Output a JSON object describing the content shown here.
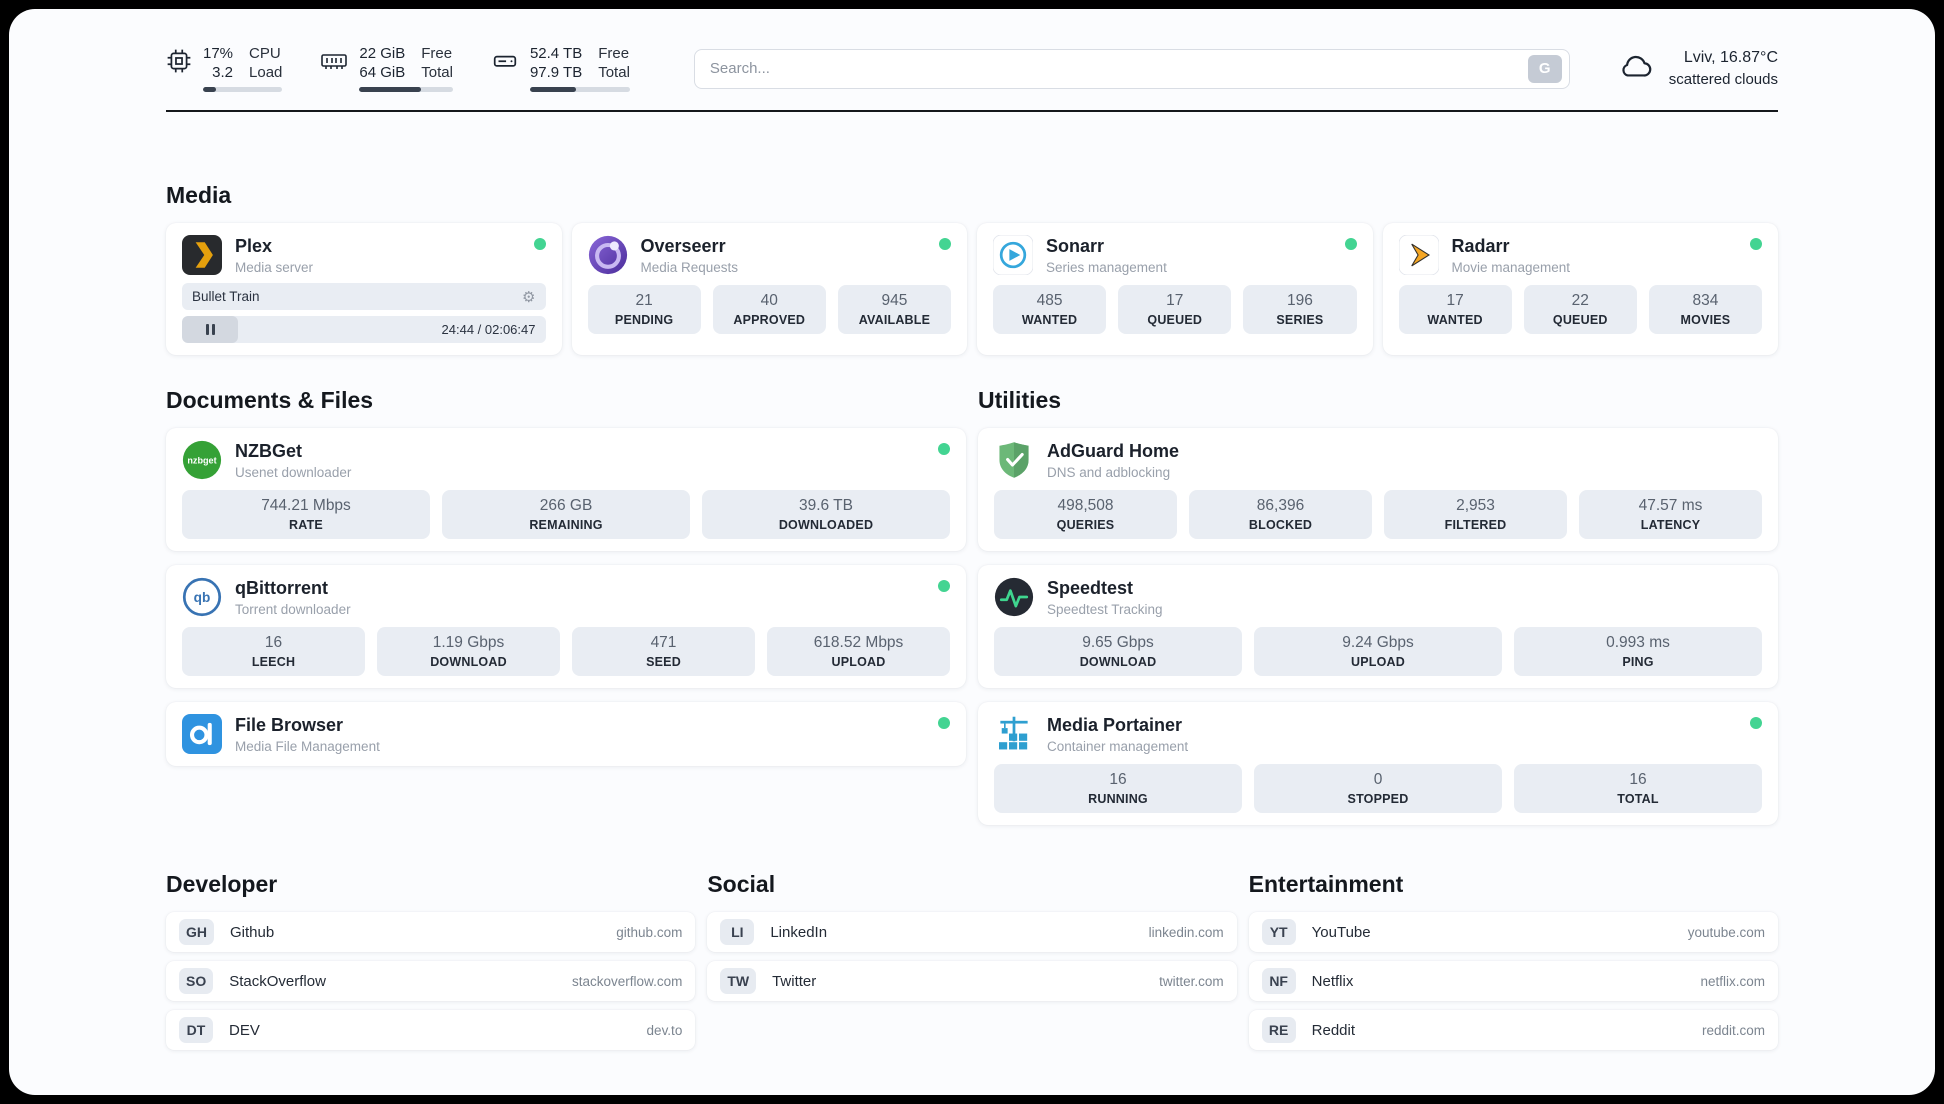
{
  "topbar": {
    "cpu": {
      "value1": "17%",
      "label1": "CPU",
      "value2": "3.2",
      "label2": "Load",
      "progress": 17
    },
    "ram": {
      "value1": "22 GiB",
      "label1": "Free",
      "value2": "64 GiB",
      "label2": "Total",
      "progress": 66
    },
    "disk": {
      "value1": "52.4 TB",
      "label1": "Free",
      "value2": "97.9 TB",
      "label2": "Total",
      "progress": 46
    },
    "search": {
      "placeholder": "Search...",
      "shortcut": "G"
    },
    "weather": {
      "location": "Lviv, 16.87°C",
      "condition": "scattered clouds"
    }
  },
  "media": {
    "title": "Media",
    "plex": {
      "name": "Plex",
      "subtitle": "Media server",
      "now_playing": "Bullet Train",
      "time": "24:44 / 02:06:47"
    },
    "overseerr": {
      "name": "Overseerr",
      "subtitle": "Media Requests",
      "stats": [
        {
          "value": "21",
          "label": "PENDING"
        },
        {
          "value": "40",
          "label": "APPROVED"
        },
        {
          "value": "945",
          "label": "AVAILABLE"
        }
      ]
    },
    "sonarr": {
      "name": "Sonarr",
      "subtitle": "Series management",
      "stats": [
        {
          "value": "485",
          "label": "WANTED"
        },
        {
          "value": "17",
          "label": "QUEUED"
        },
        {
          "value": "196",
          "label": "SERIES"
        }
      ]
    },
    "radarr": {
      "name": "Radarr",
      "subtitle": "Movie management",
      "stats": [
        {
          "value": "17",
          "label": "WANTED"
        },
        {
          "value": "22",
          "label": "QUEUED"
        },
        {
          "value": "834",
          "label": "MOVIES"
        }
      ]
    }
  },
  "documents": {
    "title": "Documents & Files",
    "nzbget": {
      "name": "NZBGet",
      "subtitle": "Usenet downloader",
      "icon_text": "nzbget",
      "stats": [
        {
          "value": "744.21 Mbps",
          "label": "RATE"
        },
        {
          "value": "266 GB",
          "label": "REMAINING"
        },
        {
          "value": "39.6 TB",
          "label": "DOWNLOADED"
        }
      ]
    },
    "qbittorrent": {
      "name": "qBittorrent",
      "subtitle": "Torrent downloader",
      "icon_text": "qb",
      "stats": [
        {
          "value": "16",
          "label": "LEECH"
        },
        {
          "value": "1.19 Gbps",
          "label": "DOWNLOAD"
        },
        {
          "value": "471",
          "label": "SEED"
        },
        {
          "value": "618.52 Mbps",
          "label": "UPLOAD"
        }
      ]
    },
    "filebrowser": {
      "name": "File Browser",
      "subtitle": "Media File Management"
    }
  },
  "utilities": {
    "title": "Utilities",
    "adguard": {
      "name": "AdGuard Home",
      "subtitle": "DNS and adblocking",
      "stats": [
        {
          "value": "498,508",
          "label": "QUERIES"
        },
        {
          "value": "86,396",
          "label": "BLOCKED"
        },
        {
          "value": "2,953",
          "label": "FILTERED"
        },
        {
          "value": "47.57 ms",
          "label": "LATENCY"
        }
      ]
    },
    "speedtest": {
      "name": "Speedtest",
      "subtitle": "Speedtest Tracking",
      "stats": [
        {
          "value": "9.65 Gbps",
          "label": "DOWNLOAD"
        },
        {
          "value": "9.24 Gbps",
          "label": "UPLOAD"
        },
        {
          "value": "0.993 ms",
          "label": "PING"
        }
      ]
    },
    "portainer": {
      "name": "Media Portainer",
      "subtitle": "Container management",
      "stats": [
        {
          "value": "16",
          "label": "RUNNING"
        },
        {
          "value": "0",
          "label": "STOPPED"
        },
        {
          "value": "16",
          "label": "TOTAL"
        }
      ]
    }
  },
  "bookmarks": {
    "developer": {
      "title": "Developer",
      "items": [
        {
          "abbr": "GH",
          "name": "Github",
          "url": "github.com"
        },
        {
          "abbr": "SO",
          "name": "StackOverflow",
          "url": "stackoverflow.com"
        },
        {
          "abbr": "DT",
          "name": "DEV",
          "url": "dev.to"
        }
      ]
    },
    "social": {
      "title": "Social",
      "items": [
        {
          "abbr": "LI",
          "name": "LinkedIn",
          "url": "linkedin.com"
        },
        {
          "abbr": "TW",
          "name": "Twitter",
          "url": "twitter.com"
        }
      ]
    },
    "entertainment": {
      "title": "Entertainment",
      "items": [
        {
          "abbr": "YT",
          "name": "YouTube",
          "url": "youtube.com"
        },
        {
          "abbr": "NF",
          "name": "Netflix",
          "url": "netflix.com"
        },
        {
          "abbr": "RE",
          "name": "Reddit",
          "url": "reddit.com"
        }
      ]
    }
  },
  "colors": {
    "status_green": "#43d492",
    "plex_yellow": "#e5a00d"
  }
}
